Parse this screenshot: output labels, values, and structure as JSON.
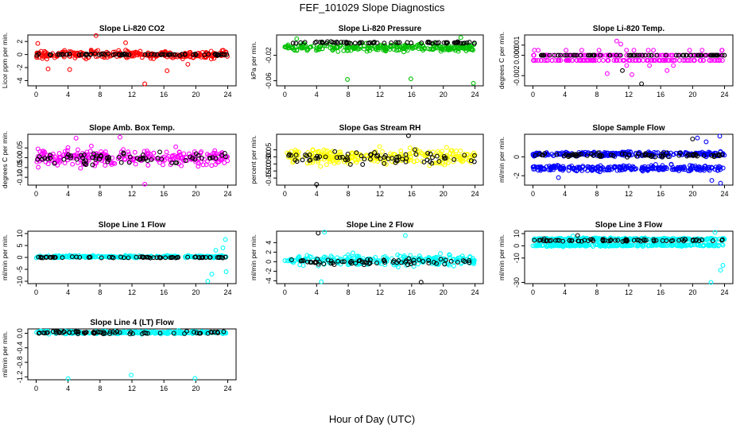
{
  "figure": {
    "title": "FEF_101029  Slope Diagnostics",
    "xlabel": "Hour of Day (UTC)"
  },
  "chart_data": [
    {
      "type": "scatter",
      "title": "Slope Li-820 CO2",
      "ylabel": "Licor ppm per min.",
      "xlim": [
        0,
        24
      ],
      "ylim": [
        -4.8,
        3.0
      ],
      "x_ticks": [
        0,
        4,
        8,
        12,
        16,
        20,
        24
      ],
      "y_ticks": [
        -4,
        -2,
        0,
        2
      ],
      "grid": false,
      "series": [
        {
          "color": "#ff0000",
          "base": 0.0,
          "spread": 0.8,
          "jitter": 0.4,
          "outliers": [
            [
              4.2,
              -2.3
            ],
            [
              7.5,
              2.9
            ],
            [
              11.2,
              1.8
            ],
            [
              13.6,
              -4.5
            ],
            [
              16.4,
              -2.5
            ],
            [
              19.0,
              -1.5
            ],
            [
              1.5,
              -2.2
            ],
            [
              0.2,
              1.7
            ]
          ]
        },
        {
          "color": "#000000",
          "base": 0.0,
          "spread": 0.15,
          "jitter": 0.1,
          "outliers": []
        }
      ]
    },
    {
      "type": "scatter",
      "title": "Slope Li-820 Pressure",
      "ylabel": "kPa per min.",
      "xlim": [
        0,
        24
      ],
      "ylim": [
        -0.068,
        0.012
      ],
      "x_ticks": [
        0,
        4,
        8,
        12,
        16,
        20,
        24
      ],
      "y_ticks": [
        -0.06,
        -0.02
      ],
      "grid": false,
      "series": [
        {
          "color": "#00c000",
          "base": -0.008,
          "spread": 0.008,
          "jitter": 0.004,
          "outliers": [
            [
              7.9,
              -0.058
            ],
            [
              15.9,
              -0.057
            ],
            [
              23.8,
              -0.064
            ],
            [
              1.5,
              0.006
            ],
            [
              22.2,
              0.008
            ]
          ]
        },
        {
          "color": "#000000",
          "base": 0.0,
          "spread": 0.002,
          "jitter": 0.001,
          "outliers": []
        }
      ]
    },
    {
      "type": "scatter",
      "title": "Slope Li-820 Temp.",
      "ylabel": "degrees C per min.",
      "xlim": [
        0,
        24
      ],
      "ylim": [
        -0.003,
        0.002
      ],
      "x_ticks": [
        0,
        4,
        8,
        12,
        16,
        20,
        24
      ],
      "y_ticks": [
        -0.002,
        0.0,
        0.001
      ],
      "y_tick_labels": [
        "-0.002",
        "0.000",
        "0.001"
      ],
      "grid": false,
      "series": [
        {
          "color": "#ff00ff",
          "base": -0.0002,
          "spread": 0.0007,
          "jitter": 0.0003,
          "levels": true,
          "outliers": [
            [
              10.5,
              0.0014
            ],
            [
              11.0,
              0.0011
            ],
            [
              9.3,
              -0.0018
            ],
            [
              12.4,
              -0.0019
            ],
            [
              16.8,
              -0.0015
            ]
          ]
        },
        {
          "color": "#000000",
          "base": 0.0,
          "spread": 0.0003,
          "jitter": 0.0002,
          "levels": true,
          "outliers": [
            [
              13.6,
              -0.0028
            ],
            [
              11.2,
              -0.0015
            ]
          ]
        }
      ]
    },
    {
      "type": "scatter",
      "title": "Slope Amb. Box Temp.",
      "ylabel": "degrees C per min.",
      "xlim": [
        0,
        24
      ],
      "ylim": [
        -0.14,
        0.12
      ],
      "x_ticks": [
        0,
        4,
        8,
        12,
        16,
        20,
        24
      ],
      "y_ticks": [
        -0.1,
        -0.05,
        0.0,
        0.05
      ],
      "y_tick_labels": [
        "-0.10",
        "-0.05",
        "0.00",
        "0.05"
      ],
      "grid": false,
      "series": [
        {
          "color": "#ff00ff",
          "base": 0.0,
          "spread": 0.055,
          "jitter": 0.03,
          "outliers": [
            [
              13.6,
              -0.135
            ],
            [
              5.0,
              0.1
            ],
            [
              10.5,
              0.105
            ]
          ]
        },
        {
          "color": "#000000",
          "base": 0.0,
          "spread": 0.04,
          "jitter": 0.02,
          "outliers": []
        }
      ]
    },
    {
      "type": "scatter",
      "title": "Slope Gas Stream RH",
      "ylabel": "percent per min.",
      "xlim": [
        0,
        24
      ],
      "ylim": [
        -0.2,
        0.16
      ],
      "x_ticks": [
        0,
        4,
        8,
        12,
        16,
        20,
        24
      ],
      "y_ticks": [
        -0.15,
        -0.1,
        -0.05,
        0.0,
        0.05
      ],
      "y_tick_labels": [
        "-0.15",
        "-0.10",
        "-0.05",
        "0.00",
        "0.05"
      ],
      "grid": false,
      "series": [
        {
          "color": "#ffff00",
          "base": 0.0,
          "spread": 0.07,
          "jitter": 0.04,
          "outliers": []
        },
        {
          "color": "#000000",
          "base": -0.01,
          "spread": 0.06,
          "jitter": 0.03,
          "outliers": [
            [
              4.0,
              -0.195
            ],
            [
              15.6,
              0.15
            ]
          ]
        }
      ]
    },
    {
      "type": "scatter",
      "title": "Slope Sample Flow",
      "ylabel": "ml/min per min.",
      "xlim": [
        0,
        24
      ],
      "ylim": [
        -3.0,
        2.4
      ],
      "x_ticks": [
        0,
        4,
        8,
        12,
        16,
        20,
        24
      ],
      "y_ticks": [
        -2,
        0
      ],
      "grid": false,
      "series": [
        {
          "color": "#0000ff",
          "base": 0.3,
          "spread": 0.3,
          "jitter": 0.2,
          "outliers": [
            [
              23.4,
              2.2
            ],
            [
              21.7,
              1.6
            ],
            [
              20.6,
              2.0
            ]
          ]
        },
        {
          "color": "#0000ff",
          "base": -1.2,
          "spread": 0.4,
          "jitter": 0.2,
          "outliers": [
            [
              22.4,
              -2.5
            ],
            [
              23.5,
              -2.8
            ],
            [
              3.2,
              -2.2
            ]
          ]
        },
        {
          "color": "#000000",
          "base": 0.2,
          "spread": 0.3,
          "jitter": 0.15,
          "outliers": [
            [
              20.0,
              1.9
            ]
          ]
        }
      ]
    },
    {
      "type": "scatter",
      "title": "Slope Line 1 Flow",
      "ylabel": "ml/min per min.",
      "xlim": [
        0,
        24
      ],
      "ylim": [
        -11,
        11
      ],
      "x_ticks": [
        0,
        4,
        8,
        12,
        16,
        20,
        24
      ],
      "y_ticks": [
        -10,
        -5,
        0,
        5,
        10
      ],
      "grid": false,
      "series": [
        {
          "color": "#00ffff",
          "base": 0.3,
          "spread": 0.6,
          "jitter": 0.4,
          "outliers": [
            [
              23.7,
              7.5
            ],
            [
              23.4,
              4.0
            ],
            [
              21.5,
              -10.0
            ],
            [
              22.0,
              -7.0
            ],
            [
              23.8,
              -6.0
            ],
            [
              22.5,
              3.0
            ]
          ]
        },
        {
          "color": "#000000",
          "base": 0.0,
          "spread": 0.3,
          "jitter": 0.2,
          "outliers": []
        }
      ]
    },
    {
      "type": "scatter",
      "title": "Slope Line 2 Flow",
      "ylabel": "ml/min per min.",
      "xlim": [
        0,
        24
      ],
      "ylim": [
        -4.6,
        6.4
      ],
      "x_ticks": [
        0,
        4,
        8,
        12,
        16,
        20,
        24
      ],
      "y_ticks": [
        -4,
        -2,
        0,
        2,
        4
      ],
      "grid": false,
      "series": [
        {
          "color": "#00ffff",
          "base": 0.3,
          "spread": 1.4,
          "jitter": 0.8,
          "outliers": [
            [
              5.0,
              6.2
            ],
            [
              4.6,
              -4.2
            ],
            [
              15.2,
              5.5
            ]
          ]
        },
        {
          "color": "#000000",
          "base": 0.0,
          "spread": 0.8,
          "jitter": 0.4,
          "outliers": [
            [
              4.2,
              6.0
            ],
            [
              17.2,
              -4.3
            ]
          ]
        }
      ]
    },
    {
      "type": "scatter",
      "title": "Slope Line 3 Flow",
      "ylabel": "ml/min per min.",
      "xlim": [
        0,
        24
      ],
      "ylim": [
        -31,
        12
      ],
      "x_ticks": [
        0,
        4,
        8,
        12,
        16,
        20,
        24
      ],
      "y_ticks": [
        -30,
        -10,
        0,
        10
      ],
      "grid": false,
      "series": [
        {
          "color": "#00ffff",
          "base": 5.5,
          "spread": 1.2,
          "jitter": 0.7,
          "outliers": [
            [
              22.8,
              11.0
            ],
            [
              5.0,
              8.0
            ]
          ]
        },
        {
          "color": "#00ffff",
          "base": 0.5,
          "spread": 1.2,
          "jitter": 0.6,
          "outliers": [
            [
              23.5,
              -20.0
            ],
            [
              22.3,
              -30.0
            ],
            [
              23.8,
              -16.0
            ]
          ]
        },
        {
          "color": "#000000",
          "base": 4.5,
          "spread": 1.2,
          "jitter": 0.6,
          "outliers": [
            [
              5.6,
              8.5
            ]
          ]
        }
      ]
    },
    {
      "type": "scatter",
      "title": "Slope Line 4 (LT) Flow",
      "ylabel": "ml/min per min.",
      "xlim": [
        0,
        24
      ],
      "ylim": [
        -1.28,
        0.12
      ],
      "x_ticks": [
        0,
        4,
        8,
        12,
        16,
        20,
        24
      ],
      "y_ticks": [
        -1.2,
        -0.8,
        -0.4,
        0.0
      ],
      "y_tick_labels": [
        "-1.2",
        "-0.8",
        "-0.4",
        "0.0"
      ],
      "grid": false,
      "series": [
        {
          "color": "#00ffff",
          "base": 0.02,
          "spread": 0.05,
          "jitter": 0.03,
          "outliers": [
            [
              4.0,
              -1.25
            ],
            [
              11.9,
              -1.15
            ],
            [
              19.9,
              -1.24
            ]
          ]
        },
        {
          "color": "#000000",
          "base": 0.02,
          "spread": 0.05,
          "jitter": 0.03,
          "outliers": []
        }
      ]
    }
  ]
}
